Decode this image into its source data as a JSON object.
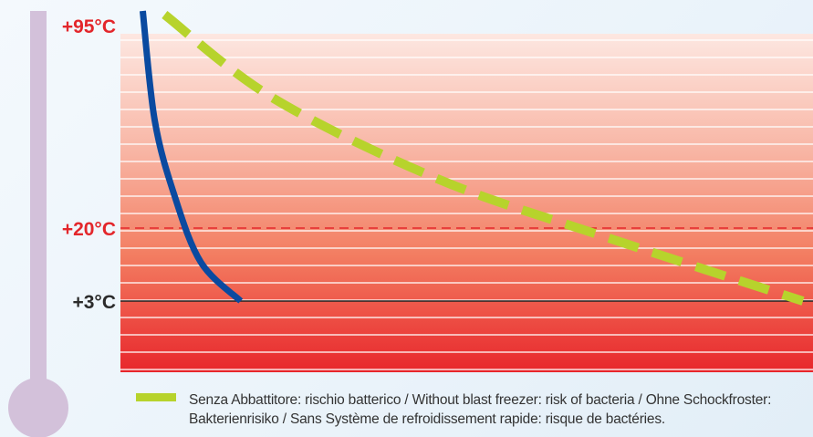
{
  "chart_data": {
    "type": "line",
    "y_scale_labels": [
      {
        "value": 95,
        "label": "+95°C",
        "color": "#e3262b"
      },
      {
        "value": 20,
        "label": "+20°C",
        "color": "#e3262b"
      },
      {
        "value": 3,
        "label": "+3°C",
        "color": "#2b2b2b"
      }
    ],
    "reference_lines": [
      {
        "value": 20,
        "style": "dashed",
        "color": "#e3262b"
      },
      {
        "value": 3,
        "style": "solid",
        "color": "#222222"
      }
    ],
    "series": [
      {
        "color": "#0a4aa0",
        "style": "solid",
        "points": [
          [
            0.02,
            99
          ],
          [
            0.2,
            60
          ],
          [
            0.5,
            32
          ],
          [
            0.9,
            12
          ],
          [
            1.5,
            3
          ]
        ]
      },
      {
        "color": "#b7d32c",
        "style": "dashed",
        "points": [
          [
            0.35,
            98
          ],
          [
            2,
            68
          ],
          [
            4.5,
            38
          ],
          [
            7,
            18
          ],
          [
            10,
            3
          ]
        ]
      }
    ],
    "legend": [
      {
        "color": "#b7d32c",
        "label": "Senza Abbattitore: rischio batterico / Without blast freezer: risk of bacteria / Ohne Schockfroster: Bakterienrisiko / Sans Système de refroidissement rapide: risque de bactéries."
      }
    ],
    "legend_position": "bottom"
  }
}
